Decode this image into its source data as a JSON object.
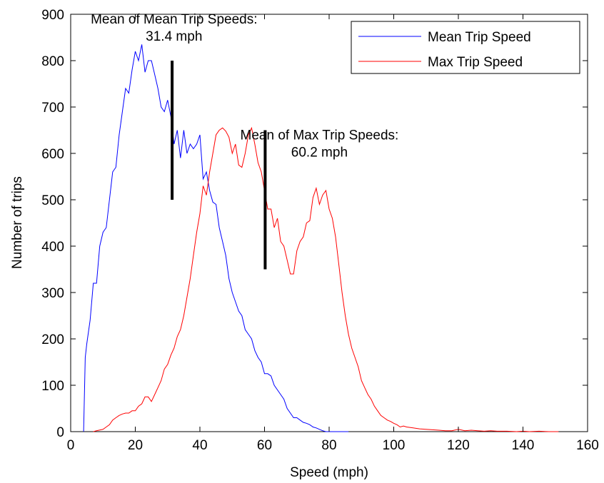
{
  "chart_data": {
    "type": "line",
    "title": "",
    "xlabel": "Speed (mph)",
    "ylabel": "Number of trips",
    "xlim": [
      0,
      160
    ],
    "ylim": [
      0,
      900
    ],
    "xticks": [
      0,
      20,
      40,
      60,
      80,
      100,
      120,
      140,
      160
    ],
    "yticks": [
      0,
      100,
      200,
      300,
      400,
      500,
      600,
      700,
      800,
      900
    ],
    "grid": false,
    "legend_position": "top-right",
    "series": [
      {
        "name": "Mean Trip Speed",
        "color": "#0000ff",
        "points": [
          [
            4,
            0
          ],
          [
            4.5,
            160
          ],
          [
            5,
            190
          ],
          [
            6,
            240
          ],
          [
            7,
            320
          ],
          [
            8,
            320
          ],
          [
            9,
            400
          ],
          [
            10,
            430
          ],
          [
            11,
            440
          ],
          [
            12,
            500
          ],
          [
            13,
            560
          ],
          [
            14,
            570
          ],
          [
            15,
            640
          ],
          [
            16,
            690
          ],
          [
            17,
            740
          ],
          [
            18,
            730
          ],
          [
            19,
            780
          ],
          [
            20,
            820
          ],
          [
            21,
            800
          ],
          [
            22,
            835
          ],
          [
            23,
            775
          ],
          [
            24,
            800
          ],
          [
            25,
            800
          ],
          [
            26,
            770
          ],
          [
            27,
            740
          ],
          [
            28,
            700
          ],
          [
            29,
            690
          ],
          [
            30,
            715
          ],
          [
            31,
            680
          ],
          [
            32,
            620
          ],
          [
            33,
            650
          ],
          [
            34,
            590
          ],
          [
            35,
            650
          ],
          [
            36,
            600
          ],
          [
            37,
            620
          ],
          [
            38,
            610
          ],
          [
            39,
            620
          ],
          [
            40,
            640
          ],
          [
            41,
            545
          ],
          [
            42,
            560
          ],
          [
            43,
            520
          ],
          [
            44,
            495
          ],
          [
            45,
            490
          ],
          [
            46,
            440
          ],
          [
            47,
            410
          ],
          [
            48,
            380
          ],
          [
            49,
            330
          ],
          [
            50,
            300
          ],
          [
            51,
            280
          ],
          [
            52,
            260
          ],
          [
            53,
            250
          ],
          [
            54,
            220
          ],
          [
            55,
            210
          ],
          [
            56,
            200
          ],
          [
            57,
            175
          ],
          [
            58,
            160
          ],
          [
            59,
            150
          ],
          [
            60,
            125
          ],
          [
            61,
            125
          ],
          [
            62,
            120
          ],
          [
            63,
            100
          ],
          [
            64,
            90
          ],
          [
            65,
            80
          ],
          [
            66,
            70
          ],
          [
            67,
            50
          ],
          [
            68,
            40
          ],
          [
            69,
            30
          ],
          [
            70,
            30
          ],
          [
            71,
            25
          ],
          [
            72,
            20
          ],
          [
            73,
            18
          ],
          [
            74,
            15
          ],
          [
            75,
            10
          ],
          [
            76,
            8
          ],
          [
            77,
            5
          ],
          [
            78,
            2
          ],
          [
            79,
            0
          ],
          [
            80,
            0
          ],
          [
            86,
            0
          ]
        ]
      },
      {
        "name": "Max Trip Speed",
        "color": "#ff0000",
        "points": [
          [
            7,
            0
          ],
          [
            8,
            2
          ],
          [
            10,
            5
          ],
          [
            11,
            10
          ],
          [
            12,
            15
          ],
          [
            13,
            25
          ],
          [
            14,
            30
          ],
          [
            15,
            35
          ],
          [
            16,
            38
          ],
          [
            17,
            40
          ],
          [
            18,
            40
          ],
          [
            19,
            45
          ],
          [
            20,
            45
          ],
          [
            21,
            55
          ],
          [
            22,
            60
          ],
          [
            23,
            75
          ],
          [
            24,
            75
          ],
          [
            25,
            65
          ],
          [
            26,
            80
          ],
          [
            27,
            95
          ],
          [
            28,
            110
          ],
          [
            29,
            135
          ],
          [
            30,
            145
          ],
          [
            31,
            165
          ],
          [
            32,
            180
          ],
          [
            33,
            205
          ],
          [
            34,
            220
          ],
          [
            35,
            250
          ],
          [
            36,
            290
          ],
          [
            37,
            330
          ],
          [
            38,
            380
          ],
          [
            39,
            430
          ],
          [
            40,
            470
          ],
          [
            41,
            530
          ],
          [
            42,
            510
          ],
          [
            43,
            560
          ],
          [
            44,
            600
          ],
          [
            45,
            640
          ],
          [
            46,
            650
          ],
          [
            47,
            655
          ],
          [
            48,
            648
          ],
          [
            49,
            635
          ],
          [
            50,
            600
          ],
          [
            51,
            620
          ],
          [
            52,
            575
          ],
          [
            53,
            570
          ],
          [
            54,
            600
          ],
          [
            55,
            640
          ],
          [
            56,
            655
          ],
          [
            57,
            620
          ],
          [
            58,
            580
          ],
          [
            59,
            560
          ],
          [
            60,
            520
          ],
          [
            61,
            480
          ],
          [
            62,
            480
          ],
          [
            63,
            440
          ],
          [
            64,
            460
          ],
          [
            65,
            410
          ],
          [
            66,
            400
          ],
          [
            67,
            370
          ],
          [
            68,
            340
          ],
          [
            69,
            340
          ],
          [
            70,
            390
          ],
          [
            71,
            410
          ],
          [
            72,
            420
          ],
          [
            73,
            450
          ],
          [
            74,
            455
          ],
          [
            75,
            505
          ],
          [
            76,
            525
          ],
          [
            77,
            490
          ],
          [
            78,
            510
          ],
          [
            79,
            520
          ],
          [
            80,
            480
          ],
          [
            81,
            460
          ],
          [
            82,
            420
          ],
          [
            83,
            360
          ],
          [
            84,
            300
          ],
          [
            85,
            250
          ],
          [
            86,
            210
          ],
          [
            87,
            180
          ],
          [
            88,
            160
          ],
          [
            89,
            140
          ],
          [
            90,
            110
          ],
          [
            91,
            95
          ],
          [
            92,
            80
          ],
          [
            93,
            70
          ],
          [
            94,
            55
          ],
          [
            95,
            45
          ],
          [
            96,
            35
          ],
          [
            97,
            30
          ],
          [
            98,
            25
          ],
          [
            99,
            22
          ],
          [
            100,
            18
          ],
          [
            101,
            15
          ],
          [
            102,
            10
          ],
          [
            103,
            12
          ],
          [
            104,
            10
          ],
          [
            106,
            8
          ],
          [
            108,
            6
          ],
          [
            110,
            5
          ],
          [
            112,
            4
          ],
          [
            114,
            3
          ],
          [
            116,
            2
          ],
          [
            118,
            2
          ],
          [
            120,
            5
          ],
          [
            122,
            2
          ],
          [
            124,
            3
          ],
          [
            126,
            2
          ],
          [
            128,
            1
          ],
          [
            130,
            2
          ],
          [
            132,
            1
          ],
          [
            135,
            1
          ],
          [
            138,
            0
          ],
          [
            140,
            1
          ],
          [
            142,
            0
          ],
          [
            145,
            1
          ],
          [
            148,
            0
          ],
          [
            151,
            0
          ]
        ]
      }
    ],
    "markers": [
      {
        "name": "mean-speed-marker",
        "x": 31.4,
        "y_from": 500,
        "y_to": 800
      },
      {
        "name": "max-speed-marker",
        "x": 60.2,
        "y_from": 350,
        "y_to": 650
      }
    ],
    "annotations": [
      {
        "name": "mean-annotation",
        "lines": [
          "Mean of Mean Trip Speeds:",
          "31.4 mph"
        ],
        "x": 32,
        "y": 880
      },
      {
        "name": "max-annotation",
        "lines": [
          "Mean of Max Trip Speeds:",
          "60.2 mph"
        ],
        "x": 77,
        "y": 630
      }
    ]
  }
}
